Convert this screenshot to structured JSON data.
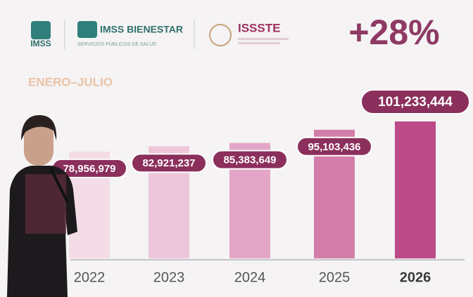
{
  "chart_data": {
    "type": "bar",
    "logos": [
      "IMSS",
      "IMSS BIENESTAR",
      "SERVICIOS PÚBLICOS DE SALUD",
      "ISSSTE"
    ],
    "headline": "+28%",
    "subtitle": "ENERO–JULIO",
    "categories": [
      "2022",
      "2023",
      "2024",
      "2025",
      "2026"
    ],
    "values": [
      78956979,
      82921237,
      85383649,
      95103436,
      101233444
    ],
    "value_labels": [
      "78,956,979",
      "82,921,237",
      "85,383,649",
      "95,103,436",
      "101,233,444"
    ],
    "colors": [
      "#f4dce6",
      "#eec6da",
      "#e3a6c6",
      "#d27ea9",
      "#bb4a86"
    ]
  }
}
